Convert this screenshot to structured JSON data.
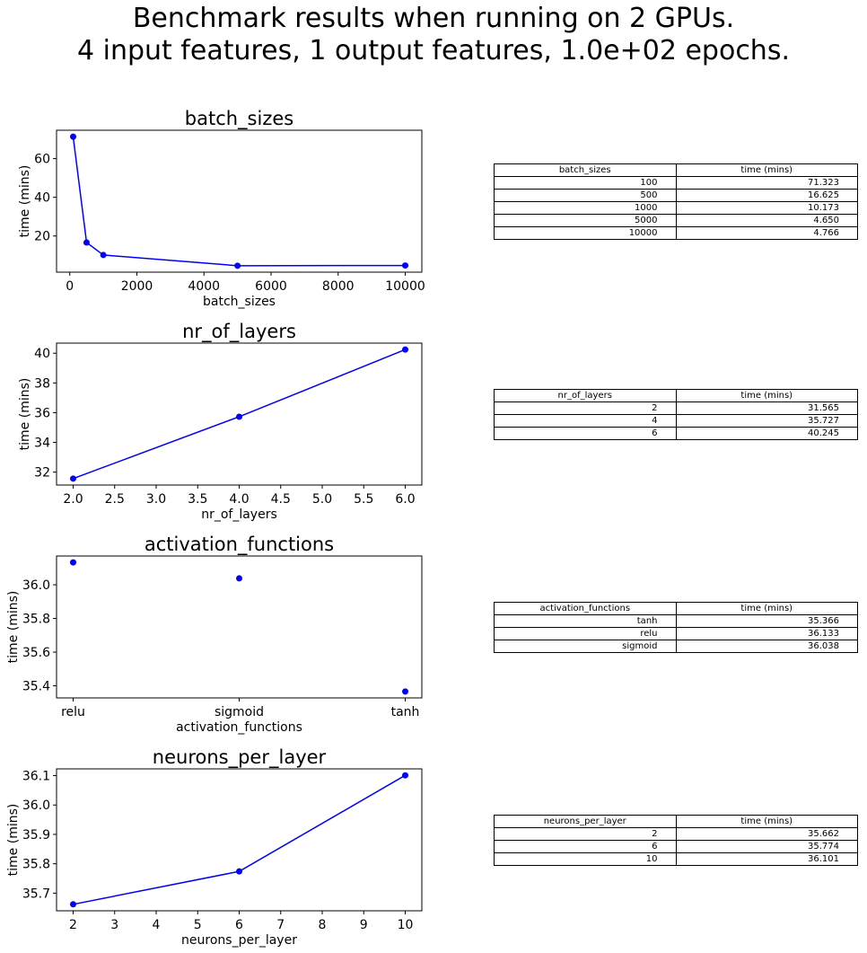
{
  "suptitle": {
    "line1": "Benchmark results when running on 2 GPUs.",
    "line2": "4 input features, 1 output features, 1.0e+02 epochs."
  },
  "chart_data": [
    {
      "type": "line",
      "title": "batch_sizes",
      "xlabel": "batch_sizes",
      "ylabel": "time (mins)",
      "x": [
        100,
        500,
        1000,
        5000,
        10000
      ],
      "y": [
        71.323,
        16.625,
        10.173,
        4.65,
        4.766
      ],
      "xlim": [
        -395,
        10495
      ],
      "ylim": [
        1.317,
        74.656
      ],
      "xticks": [
        0,
        2000,
        4000,
        6000,
        8000,
        10000
      ],
      "xtick_labels": [
        "0",
        "2000",
        "4000",
        "6000",
        "8000",
        "10000"
      ],
      "yticks": [
        20,
        40,
        60
      ],
      "ytick_labels": [
        "20",
        "40",
        "60"
      ],
      "markers": true,
      "line": true,
      "color": "#0000ff",
      "table": {
        "headers": [
          "batch_sizes",
          "time (mins)"
        ],
        "rows": [
          [
            "100",
            "71.323"
          ],
          [
            "500",
            "16.625"
          ],
          [
            "1000",
            "10.173"
          ],
          [
            "5000",
            "4.650"
          ],
          [
            "10000",
            "4.766"
          ]
        ]
      }
    },
    {
      "type": "line",
      "title": "nr_of_layers",
      "xlabel": "nr_of_layers",
      "ylabel": "time (mins)",
      "x": [
        2,
        4,
        6
      ],
      "y": [
        31.565,
        35.727,
        40.245
      ],
      "xlim": [
        1.8,
        6.2
      ],
      "ylim": [
        31.131,
        40.679
      ],
      "xticks": [
        2.0,
        2.5,
        3.0,
        3.5,
        4.0,
        4.5,
        5.0,
        5.5,
        6.0
      ],
      "xtick_labels": [
        "2.0",
        "2.5",
        "3.0",
        "3.5",
        "4.0",
        "4.5",
        "5.0",
        "5.5",
        "6.0"
      ],
      "yticks": [
        32,
        34,
        36,
        38,
        40
      ],
      "ytick_labels": [
        "32",
        "34",
        "36",
        "38",
        "40"
      ],
      "markers": true,
      "line": true,
      "color": "#0000ff",
      "table": {
        "headers": [
          "nr_of_layers",
          "time (mins)"
        ],
        "rows": [
          [
            "2",
            "31.565"
          ],
          [
            "4",
            "35.727"
          ],
          [
            "6",
            "40.245"
          ]
        ]
      }
    },
    {
      "type": "scatter",
      "title": "activation_functions",
      "xlabel": "activation_functions",
      "ylabel": "time (mins)",
      "x": [
        0,
        1,
        2
      ],
      "y": [
        36.133,
        36.038,
        35.366
      ],
      "xlim": [
        -0.1,
        2.1
      ],
      "ylim": [
        35.328,
        36.171
      ],
      "xticks": [
        0,
        1,
        2
      ],
      "xtick_labels": [
        "relu",
        "sigmoid",
        "tanh"
      ],
      "yticks": [
        35.4,
        35.6,
        35.8,
        36.0
      ],
      "ytick_labels": [
        "35.4",
        "35.6",
        "35.8",
        "36.0"
      ],
      "markers": true,
      "line": false,
      "color": "#0000ff",
      "table": {
        "headers": [
          "activation_functions",
          "time (mins)"
        ],
        "rows": [
          [
            "tanh",
            "35.366"
          ],
          [
            "relu",
            "36.133"
          ],
          [
            "sigmoid",
            "36.038"
          ]
        ]
      }
    },
    {
      "type": "line",
      "title": "neurons_per_layer",
      "xlabel": "neurons_per_layer",
      "ylabel": "time (mins)",
      "x": [
        2,
        6,
        10
      ],
      "y": [
        35.662,
        35.774,
        36.101
      ],
      "xlim": [
        1.6,
        10.4
      ],
      "ylim": [
        35.64,
        36.123
      ],
      "xticks": [
        2,
        3,
        4,
        5,
        6,
        7,
        8,
        9,
        10
      ],
      "xtick_labels": [
        "2",
        "3",
        "4",
        "5",
        "6",
        "7",
        "8",
        "9",
        "10"
      ],
      "yticks": [
        35.7,
        35.8,
        35.9,
        36.0,
        36.1
      ],
      "ytick_labels": [
        "35.7",
        "35.8",
        "35.9",
        "36.0",
        "36.1"
      ],
      "markers": true,
      "line": true,
      "color": "#0000ff",
      "table": {
        "headers": [
          "neurons_per_layer",
          "time (mins)"
        ],
        "rows": [
          [
            "2",
            "35.662"
          ],
          [
            "6",
            "35.774"
          ],
          [
            "10",
            "36.101"
          ]
        ]
      }
    }
  ]
}
